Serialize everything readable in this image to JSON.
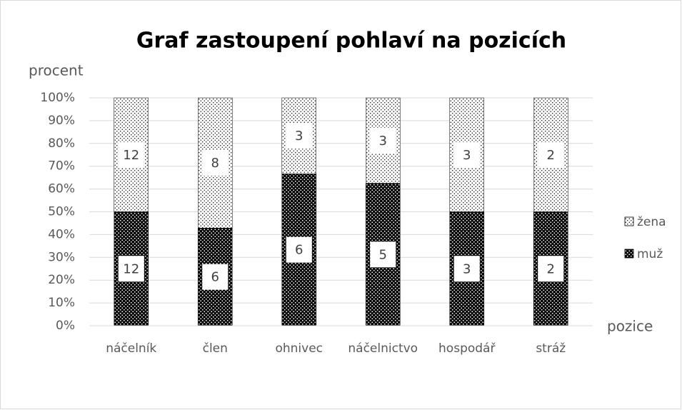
{
  "chart_data": {
    "type": "bar_stacked_percent",
    "title": "Graf zastoupení pohlaví na pozicích",
    "y_label": "procent",
    "x_label": "pozice",
    "categories": [
      "náčelník",
      "člen",
      "ohnivec",
      "náčelnictvo",
      "hospodář",
      "stráž"
    ],
    "series": [
      {
        "name": "muž",
        "color": "#000000",
        "values": [
          12,
          6,
          6,
          5,
          3,
          2
        ]
      },
      {
        "name": "žena",
        "color": "#ffffff",
        "values": [
          12,
          8,
          3,
          3,
          3,
          2
        ]
      }
    ],
    "ylim": [
      0,
      100
    ],
    "yticks": [
      {
        "value": 0,
        "label": "0%"
      },
      {
        "value": 10,
        "label": "10%"
      },
      {
        "value": 20,
        "label": "20%"
      },
      {
        "value": 30,
        "label": "30%"
      },
      {
        "value": 40,
        "label": "40%"
      },
      {
        "value": 50,
        "label": "50%"
      },
      {
        "value": 60,
        "label": "60%"
      },
      {
        "value": 70,
        "label": "70%"
      },
      {
        "value": 80,
        "label": "80%"
      },
      {
        "value": 90,
        "label": "90%"
      },
      {
        "value": 100,
        "label": "100%"
      }
    ],
    "grid": true,
    "legend": "right"
  }
}
